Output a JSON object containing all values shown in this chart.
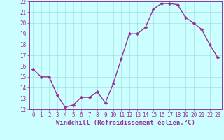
{
  "x": [
    0,
    1,
    2,
    3,
    4,
    5,
    6,
    7,
    8,
    9,
    10,
    11,
    12,
    13,
    14,
    15,
    16,
    17,
    18,
    19,
    20,
    21,
    22,
    23
  ],
  "y": [
    15.7,
    15.0,
    15.0,
    13.3,
    12.2,
    12.4,
    13.1,
    13.1,
    13.6,
    12.6,
    14.4,
    16.7,
    19.0,
    19.0,
    19.6,
    21.3,
    21.8,
    21.8,
    21.7,
    20.5,
    20.0,
    19.4,
    18.0,
    16.8
  ],
  "line_color": "#993399",
  "marker": "D",
  "marker_size": 2.2,
  "background_color": "#ccffff",
  "grid_color": "#aadddd",
  "xlabel": "Windchill (Refroidissement éolien,°C)",
  "xlabel_color": "#993399",
  "tick_color": "#993399",
  "spine_color": "#993399",
  "ylim": [
    12,
    22
  ],
  "xlim": [
    -0.5,
    23.5
  ],
  "yticks": [
    12,
    13,
    14,
    15,
    16,
    17,
    18,
    19,
    20,
    21,
    22
  ],
  "xticks": [
    0,
    1,
    2,
    3,
    4,
    5,
    6,
    7,
    8,
    9,
    10,
    11,
    12,
    13,
    14,
    15,
    16,
    17,
    18,
    19,
    20,
    21,
    22,
    23
  ],
  "tick_fontsize": 5.5,
  "xlabel_fontsize": 6.5,
  "line_width": 1.0
}
